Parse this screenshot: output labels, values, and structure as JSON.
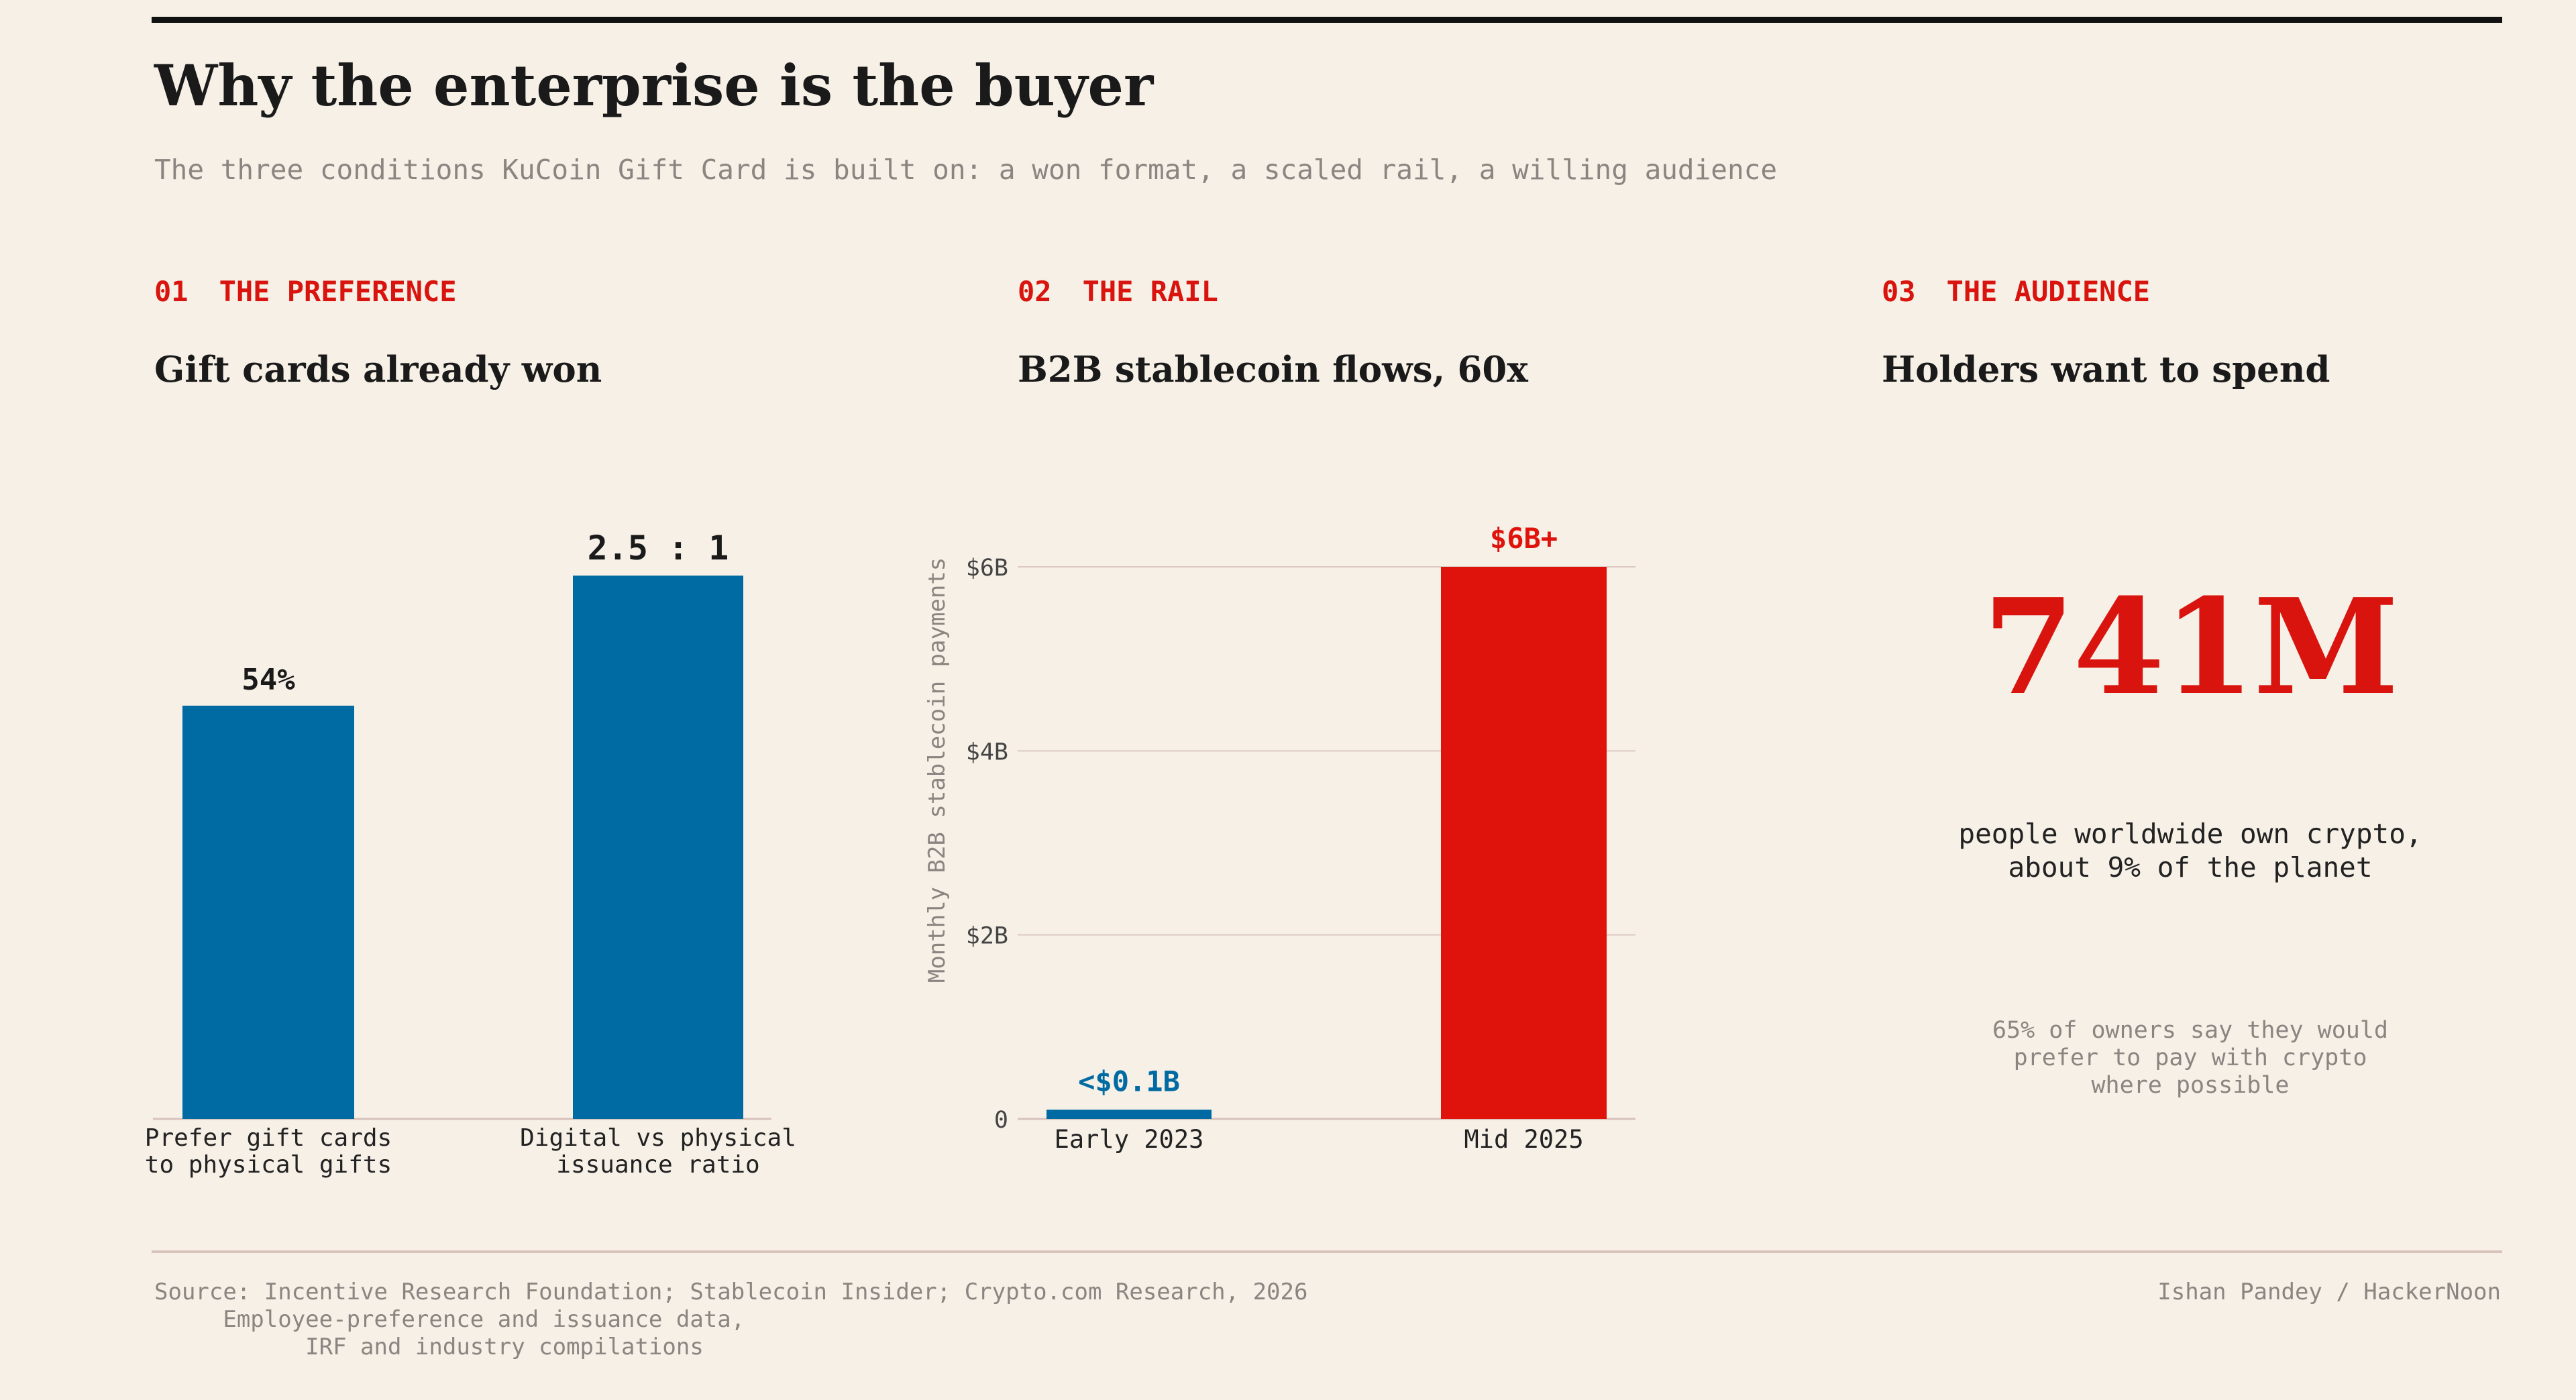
{
  "title": "Why the enterprise is the buyer",
  "subtitle": "The three conditions KuCoin Gift Card is built on: a won format, a scaled rail, a willing audience",
  "panels": [
    {
      "num": "01",
      "label": "THE PREFERENCE",
      "title": "Gift cards already won"
    },
    {
      "num": "02",
      "label": "THE RAIL",
      "title": "B2B stablecoin flows, 60x"
    },
    {
      "num": "03",
      "label": "THE AUDIENCE",
      "title": "Holders want to spend"
    }
  ],
  "stat": {
    "value": "741M",
    "caption": "people worldwide own crypto,\nabout 9% of the planet",
    "note": "65% of owners say they would\nprefer to pay with crypto\nwhere possible"
  },
  "footer": {
    "source": "Source: Incentive Research Foundation; Stablecoin Insider; Crypto.com Research, 2026\n     Employee-preference and issuance data,\n           IRF and industry compilations",
    "byline": "Ishan Pandey / HackerNoon"
  },
  "colors": {
    "blue": "#006aa3",
    "red": "#e0130c",
    "grid": "#dcc9c2",
    "axis": "#d8c3bb",
    "muted": "#8a8580"
  },
  "chart_data": [
    {
      "type": "bar",
      "categories": [
        "Prefer gift cards\nto physical gifts",
        "Digital vs physical\nissuance ratio"
      ],
      "values": [
        54,
        71
      ],
      "data_labels": [
        "54%",
        "2.5 : 1"
      ],
      "colors": [
        "#006aa3",
        "#006aa3"
      ],
      "ylim": [
        0,
        75
      ],
      "grid": false
    },
    {
      "type": "bar",
      "categories": [
        "Early 2023",
        "Mid 2025"
      ],
      "values": [
        0.1,
        6
      ],
      "data_labels": [
        "<$0.1B",
        "$6B+"
      ],
      "colors": [
        "#006aa3",
        "#e0130c"
      ],
      "ylabel": "Monthly B2B stablecoin payments",
      "ylim": [
        0,
        6
      ],
      "yticks": [
        0,
        2,
        4,
        6
      ],
      "ytick_labels": [
        "0",
        "$2B",
        "$4B",
        "$6B"
      ],
      "grid": true
    }
  ]
}
